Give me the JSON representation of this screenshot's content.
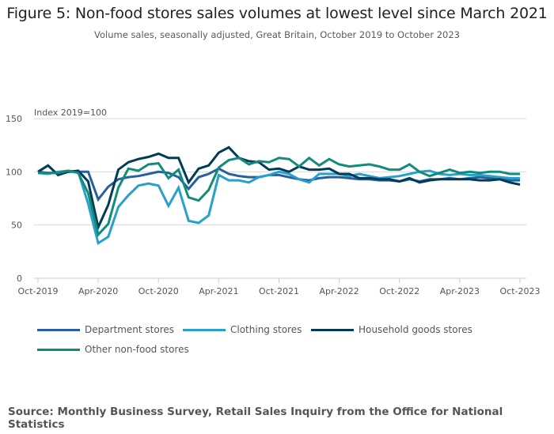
{
  "chart_data": {
    "type": "line",
    "title": "Figure 5: Non-food stores sales volumes at lowest level since March 2021",
    "subtitle": "Volume sales, seasonally adjusted, Great Britain, October 2019 to October 2023",
    "ylabel": "Index 2019=100",
    "xlabel": "",
    "ylim": [
      0,
      150
    ],
    "yticks": [
      "0",
      "50",
      "100",
      "150"
    ],
    "ytick_values": [
      0,
      50,
      100,
      150
    ],
    "grid": true,
    "legend_position": "bottom-left",
    "xtick_labels": [
      "Oct-2019",
      "Apr-2020",
      "Oct-2020",
      "Apr-2021",
      "Oct-2021",
      "Apr-2022",
      "Oct-2022",
      "Apr-2023",
      "Oct-2023"
    ],
    "xtick_indices": [
      0,
      6,
      12,
      18,
      24,
      30,
      36,
      42,
      48
    ],
    "x_start": "Oct-2019",
    "x_end": "Oct-2023",
    "x_count": 49,
    "series": [
      {
        "name": "Department stores",
        "color": "#27609e",
        "values": [
          100,
          99,
          99,
          100,
          100,
          100,
          74,
          86,
          93,
          95,
          96,
          98,
          100,
          99,
          95,
          84,
          95,
          98,
          103,
          98,
          96,
          95,
          95,
          97,
          97,
          95,
          93,
          92,
          94,
          95,
          95,
          94,
          93,
          93,
          92,
          92,
          91,
          93,
          91,
          93,
          93,
          94,
          93,
          94,
          95,
          94,
          93,
          92,
          92
        ]
      },
      {
        "name": "Clothing stores",
        "color": "#27a0cc",
        "values": [
          99,
          98,
          100,
          101,
          100,
          70,
          33,
          39,
          67,
          78,
          87,
          89,
          87,
          68,
          85,
          54,
          52,
          59,
          97,
          92,
          92,
          90,
          95,
          97,
          100,
          98,
          93,
          90,
          98,
          98,
          98,
          96,
          98,
          96,
          94,
          95,
          96,
          98,
          100,
          101,
          98,
          97,
          98,
          97,
          97,
          96,
          95,
          94,
          94
        ]
      },
      {
        "name": "Household goods stores",
        "color": "#003c57",
        "values": [
          100,
          106,
          97,
          100,
          101,
          91,
          48,
          69,
          102,
          109,
          112,
          114,
          117,
          113,
          113,
          90,
          103,
          106,
          118,
          123,
          113,
          110,
          109,
          102,
          103,
          100,
          105,
          102,
          102,
          103,
          98,
          98,
          94,
          94,
          93,
          93,
          91,
          94,
          90,
          92,
          93,
          93,
          93,
          93,
          92,
          92,
          93,
          90,
          88
        ]
      },
      {
        "name": "Other non-food stores",
        "color": "#118c7b",
        "values": [
          99,
          99,
          99,
          101,
          99,
          80,
          41,
          51,
          85,
          103,
          101,
          107,
          108,
          94,
          102,
          76,
          73,
          83,
          104,
          111,
          113,
          107,
          110,
          109,
          113,
          112,
          105,
          113,
          106,
          112,
          107,
          105,
          106,
          107,
          105,
          102,
          102,
          107,
          100,
          96,
          99,
          102,
          99,
          100,
          99,
          100,
          100,
          98,
          98
        ]
      }
    ]
  },
  "source": "Source: Monthly Business Survey, Retail Sales Inquiry from the Office for National Statistics",
  "colors": {
    "gridline": "#d9d9d9",
    "axis": "#bfcfe0"
  }
}
